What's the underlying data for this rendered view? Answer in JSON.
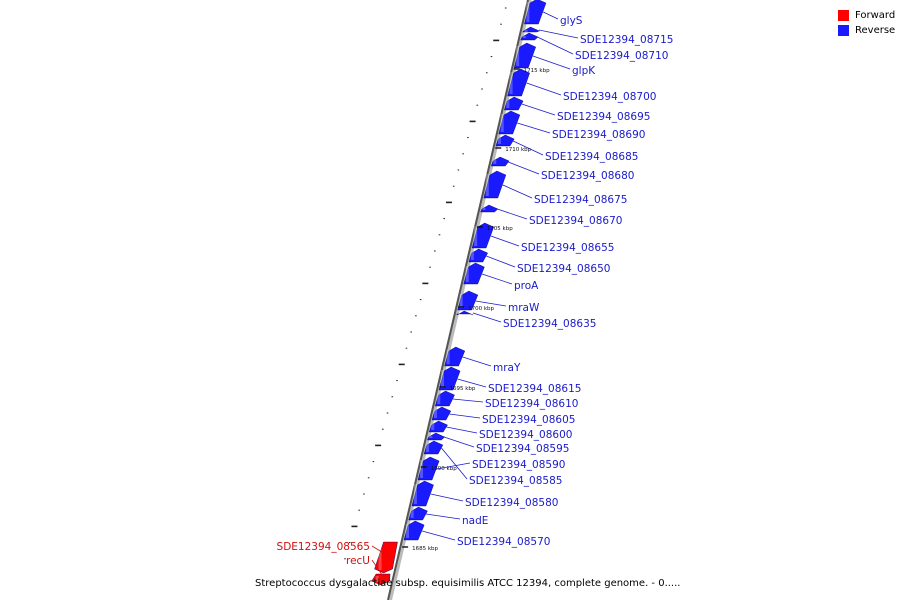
{
  "legend": {
    "forward_label": "Forward",
    "reverse_label": "Reverse",
    "forward_color": "#ff0000",
    "reverse_color": "#1a1aff"
  },
  "caption": "Streptococcus dysgalactiae subsp. equisimilis ATCC 12394, complete genome. - 0.....",
  "colors": {
    "forward_label_text": "#d01010",
    "reverse_label_text": "#1a1acc",
    "backbone": "#555555"
  },
  "scale_marks": [
    "1715 kbp",
    "1710 kbp",
    "1705 kbp",
    "1700 kbp",
    "1695 kbp",
    "1690 kbp",
    "1685 kbp"
  ],
  "genes": [
    {
      "label": "glyS",
      "strand": "reverse"
    },
    {
      "label": "SDE12394_08715",
      "strand": "reverse"
    },
    {
      "label": "SDE12394_08710",
      "strand": "reverse"
    },
    {
      "label": "glpK",
      "strand": "reverse"
    },
    {
      "label": "SDE12394_08700",
      "strand": "reverse"
    },
    {
      "label": "SDE12394_08695",
      "strand": "reverse"
    },
    {
      "label": "SDE12394_08690",
      "strand": "reverse"
    },
    {
      "label": "SDE12394_08685",
      "strand": "reverse"
    },
    {
      "label": "SDE12394_08680",
      "strand": "reverse"
    },
    {
      "label": "SDE12394_08675",
      "strand": "reverse"
    },
    {
      "label": "SDE12394_08670",
      "strand": "reverse"
    },
    {
      "label": "SDE12394_08655",
      "strand": "reverse"
    },
    {
      "label": "SDE12394_08650",
      "strand": "reverse"
    },
    {
      "label": "proA",
      "strand": "reverse"
    },
    {
      "label": "mraW",
      "strand": "reverse"
    },
    {
      "label": "SDE12394_08635",
      "strand": "reverse"
    },
    {
      "label": "mraY",
      "strand": "reverse"
    },
    {
      "label": "SDE12394_08615",
      "strand": "reverse"
    },
    {
      "label": "SDE12394_08610",
      "strand": "reverse"
    },
    {
      "label": "SDE12394_08605",
      "strand": "reverse"
    },
    {
      "label": "SDE12394_08600",
      "strand": "reverse"
    },
    {
      "label": "SDE12394_08595",
      "strand": "reverse"
    },
    {
      "label": "SDE12394_08590",
      "strand": "reverse"
    },
    {
      "label": "SDE12394_08585",
      "strand": "reverse"
    },
    {
      "label": "SDE12394_08580",
      "strand": "reverse"
    },
    {
      "label": "nadE",
      "strand": "reverse"
    },
    {
      "label": "SDE12394_08570",
      "strand": "reverse"
    },
    {
      "label": "SDE12394_08565",
      "strand": "forward"
    },
    {
      "label": "recU",
      "strand": "forward"
    }
  ]
}
